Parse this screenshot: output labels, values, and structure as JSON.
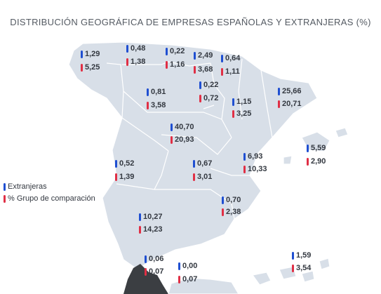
{
  "title": "DISTRIBUCIÓN GEOGRÁFICA DE EMPRESAS ESPAÑOLAS Y EXTRANJERAS (%)",
  "colors": {
    "extranjeras": "#1f4fd1",
    "grupo": "#e02f45",
    "land": "#d8dfe8"
  },
  "legend": {
    "extranjeras": "Extranjeras",
    "grupo": "% Grupo de comparación"
  },
  "regions": [
    {
      "id": "galicia",
      "extranjeras": "1,29",
      "grupo": "5,25"
    },
    {
      "id": "asturias",
      "extranjeras": "0,48",
      "grupo": "1,38"
    },
    {
      "id": "cantabria",
      "extranjeras": "0,22",
      "grupo": "1,16"
    },
    {
      "id": "pais-vasco",
      "extranjeras": "2,49",
      "grupo": "3,68"
    },
    {
      "id": "navarra",
      "extranjeras": "0,64",
      "grupo": "1,11"
    },
    {
      "id": "castilla-leon",
      "extranjeras": "0,81",
      "grupo": "3,58"
    },
    {
      "id": "la-rioja",
      "extranjeras": "0,22",
      "grupo": "0,72"
    },
    {
      "id": "aragon",
      "extranjeras": "1,15",
      "grupo": "3,25"
    },
    {
      "id": "cataluna",
      "extranjeras": "25,66",
      "grupo": "20,71"
    },
    {
      "id": "madrid",
      "extranjeras": "40,70",
      "grupo": "20,93"
    },
    {
      "id": "baleares",
      "extranjeras": "5,59",
      "grupo": "2,90"
    },
    {
      "id": "extremadura",
      "extranjeras": "0,52",
      "grupo": "1,39"
    },
    {
      "id": "castilla-mancha",
      "extranjeras": "0,67",
      "grupo": "3,01"
    },
    {
      "id": "valencia",
      "extranjeras": "6,93",
      "grupo": "10,33"
    },
    {
      "id": "murcia",
      "extranjeras": "0,70",
      "grupo": "2,38"
    },
    {
      "id": "andalucia",
      "extranjeras": "10,27",
      "grupo": "14,23"
    },
    {
      "id": "ceuta",
      "extranjeras": "0,06",
      "grupo": "0,07"
    },
    {
      "id": "melilla",
      "extranjeras": "0,00",
      "grupo": "0,07"
    },
    {
      "id": "canarias",
      "extranjeras": "1,59",
      "grupo": "3,54"
    }
  ]
}
